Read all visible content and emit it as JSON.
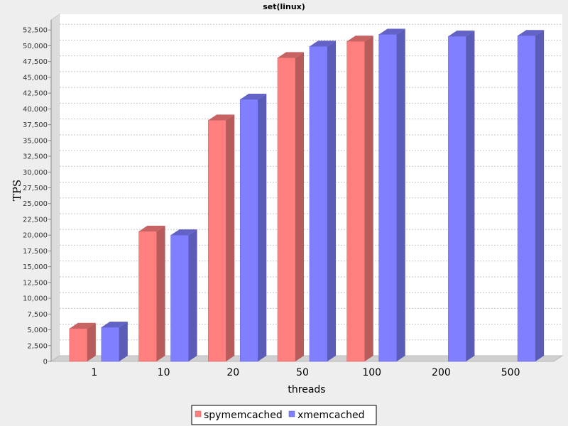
{
  "chart_data": {
    "type": "bar",
    "title": "set(linux)",
    "xlabel": "threads",
    "ylabel": "TPS",
    "categories": [
      "1",
      "10",
      "20",
      "50",
      "100",
      "200",
      "500"
    ],
    "series": [
      {
        "name": "spymemcached",
        "color": "#ff7f7f",
        "values": [
          5200,
          20600,
          38200,
          48100,
          50700,
          null,
          null
        ]
      },
      {
        "name": "xmemcached",
        "color": "#7f7fff",
        "values": [
          5400,
          20000,
          41500,
          49900,
          51800,
          51500,
          51600
        ]
      }
    ],
    "ylim": [
      0,
      55000
    ],
    "yticks": [
      0,
      2500,
      5000,
      7500,
      10000,
      12500,
      15000,
      17500,
      20000,
      22500,
      25000,
      27500,
      30000,
      32500,
      35000,
      37500,
      40000,
      42500,
      45000,
      47500,
      50000,
      52500
    ],
    "ytick_labels": [
      "0",
      "2,500",
      "5,000",
      "7,500",
      "10,000",
      "12,500",
      "15,000",
      "17,500",
      "20,000",
      "22,500",
      "25,000",
      "27,500",
      "30,000",
      "32,500",
      "35,000",
      "37,500",
      "40,000",
      "42,500",
      "45,000",
      "47,500",
      "50,000",
      "52,500"
    ],
    "grid": true,
    "legend": "bottom-center"
  }
}
